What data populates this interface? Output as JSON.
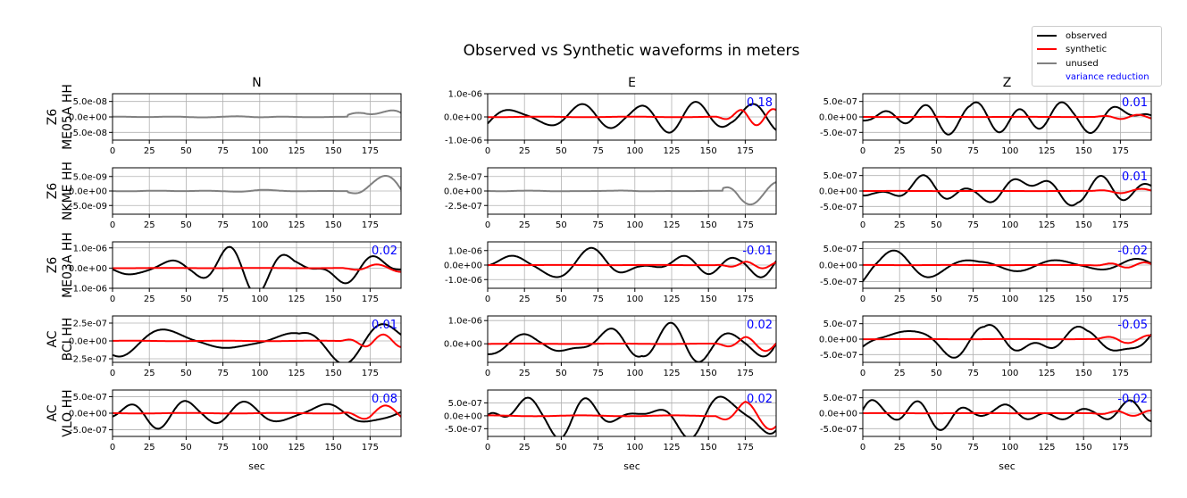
{
  "title": "Observed vs Synthetic waveforms in meters",
  "columns": [
    "N",
    "E",
    "Z"
  ],
  "xlabel": "sec",
  "legend": {
    "observed": "observed",
    "synthetic": "synthetic",
    "unused": "unused",
    "variance_reduction": "variance reduction"
  },
  "colors": {
    "observed": "#000000",
    "synthetic": "#ff0000",
    "unused": "#808080",
    "vr": "#0000ff"
  },
  "chart_data": {
    "type": "line",
    "xlim": [
      0,
      196
    ],
    "xticks": [
      0,
      25,
      50,
      75,
      100,
      125,
      150,
      175
    ],
    "grid": true,
    "legend_position": "top-right",
    "rows": [
      {
        "label_net": "Z6",
        "label_sta": "ME05A HH",
        "panels": [
          {
            "status": "unused",
            "ylim": [
              -7.5e-08,
              7.5e-08
            ],
            "yticks": [
              5e-08,
              0,
              -5e-08
            ],
            "yticklabels": [
              "5.0e-08",
              "0.0e+00",
              "-5.0e-08"
            ],
            "vr": "",
            "amp": 7e-08,
            "seed": 1,
            "onset": 160
          },
          {
            "status": "used",
            "ylim": [
              -1e-06,
              1e-06
            ],
            "yticks": [
              1e-06,
              0,
              -1e-06
            ],
            "yticklabels": [
              "1.0e-06",
              "0.0e+00",
              "-1.0e-06"
            ],
            "vr": "0.18",
            "amp": 1e-06,
            "seed": 2,
            "synth": 0.35
          },
          {
            "status": "used",
            "ylim": [
              -7.5e-07,
              7.5e-07
            ],
            "yticks": [
              5e-07,
              0,
              -5e-07
            ],
            "yticklabels": [
              "5.0e-07",
              "0.0e+00",
              "-5.0e-07"
            ],
            "vr": "0.01",
            "amp": 7e-07,
            "seed": 3,
            "synth": 0.1
          }
        ]
      },
      {
        "label_net": "Z6",
        "label_sta": "NKME HH",
        "panels": [
          {
            "status": "unused",
            "ylim": [
              -8e-09,
              8e-09
            ],
            "yticks": [
              5e-09,
              0,
              -5e-09
            ],
            "yticklabels": [
              "5.0e-09",
              "0.0e+00",
              "-5.0e-09"
            ],
            "vr": "",
            "amp": 7e-09,
            "seed": 4,
            "onset": 160
          },
          {
            "status": "unused",
            "ylim": [
              -4e-07,
              4e-07
            ],
            "yticks": [
              2.5e-07,
              0,
              -2.5e-07
            ],
            "yticklabels": [
              "2.5e-07",
              "0.0e+00",
              "-2.5e-07"
            ],
            "vr": "",
            "amp": 3.5e-07,
            "seed": 5,
            "onset": 160
          },
          {
            "status": "used",
            "ylim": [
              -7.5e-07,
              7.5e-07
            ],
            "yticks": [
              5e-07,
              0,
              -5e-07
            ],
            "yticklabels": [
              "5.0e-07",
              "0.0e+00",
              "-5.0e-07"
            ],
            "vr": "0.01",
            "amp": 7e-07,
            "seed": 6,
            "synth": 0.1
          }
        ]
      },
      {
        "label_net": "Z6",
        "label_sta": "ME03A HH",
        "panels": [
          {
            "status": "used",
            "ylim": [
              -1e-06,
              1.3e-06
            ],
            "yticks": [
              1e-06,
              0,
              -1e-06
            ],
            "yticklabels": [
              "1.0e-06",
              "0.0e+00",
              "-1.0e-06"
            ],
            "vr": "0.02",
            "amp": 1.2e-06,
            "seed": 7,
            "synth": 0.15
          },
          {
            "status": "used",
            "ylim": [
              -1.6e-06,
              1.6e-06
            ],
            "yticks": [
              1e-06,
              0,
              -1e-06
            ],
            "yticklabels": [
              "1.0e-06",
              "0.0e+00",
              "-1.0e-06"
            ],
            "vr": "-0.01",
            "amp": 1.5e-06,
            "seed": 8,
            "synth": 0.15
          },
          {
            "status": "used",
            "ylim": [
              -7e-07,
              7e-07
            ],
            "yticks": [
              5e-07,
              0,
              -5e-07
            ],
            "yticklabels": [
              "5.0e-07",
              "0.0e+00",
              "-5.0e-07"
            ],
            "vr": "-0.02",
            "amp": 6.5e-07,
            "seed": 9,
            "synth": 0.12
          }
        ]
      },
      {
        "label_net": "AC",
        "label_sta": "BCI HH",
        "panels": [
          {
            "status": "used",
            "ylim": [
              -3e-07,
              3.5e-07
            ],
            "yticks": [
              2.5e-07,
              0,
              -2.5e-07
            ],
            "yticklabels": [
              "2.5e-07",
              "0.0e+00",
              "-2.5e-07"
            ],
            "vr": "0.01",
            "amp": 3e-07,
            "seed": 10,
            "synth": 0.3
          },
          {
            "status": "used",
            "ylim": [
              -8e-07,
              1.2e-06
            ],
            "yticks": [
              1e-06,
              0
            ],
            "yticklabels": [
              "1.0e-06",
              "0.0e+00"
            ],
            "vr": "0.02",
            "amp": 1e-06,
            "seed": 11,
            "synth": 0.3
          },
          {
            "status": "used",
            "ylim": [
              -7.5e-07,
              7.5e-07
            ],
            "yticks": [
              5e-07,
              0,
              -5e-07
            ],
            "yticklabels": [
              "5.0e-07",
              "0.0e+00",
              "-5.0e-07"
            ],
            "vr": "-0.05",
            "amp": 7e-07,
            "seed": 12,
            "synth": 0.18
          }
        ]
      },
      {
        "label_net": "AC",
        "label_sta": "VLO HH",
        "panels": [
          {
            "status": "used",
            "ylim": [
              -7e-07,
              7e-07
            ],
            "yticks": [
              5e-07,
              0,
              -5e-07
            ],
            "yticklabels": [
              "5.0e-07",
              "0.0e+00",
              "-5.0e-07"
            ],
            "vr": "0.08",
            "amp": 6.5e-07,
            "seed": 13,
            "synth": 0.35
          },
          {
            "status": "used",
            "ylim": [
              -8e-07,
              1e-06
            ],
            "yticks": [
              5e-07,
              0,
              -5e-07
            ],
            "yticklabels": [
              "5.0e-07",
              "0.0e+00",
              "-5.0e-07"
            ],
            "vr": "0.02",
            "amp": 9e-07,
            "seed": 14,
            "synth": 0.6
          },
          {
            "status": "used",
            "ylim": [
              -7.5e-07,
              7.5e-07
            ],
            "yticks": [
              5e-07,
              0,
              -5e-07
            ],
            "yticklabels": [
              "5.0e-07",
              "0.0e+00",
              "-5.0e-07"
            ],
            "vr": "-0.02",
            "amp": 7e-07,
            "seed": 15,
            "synth": 0.12
          }
        ]
      }
    ]
  }
}
